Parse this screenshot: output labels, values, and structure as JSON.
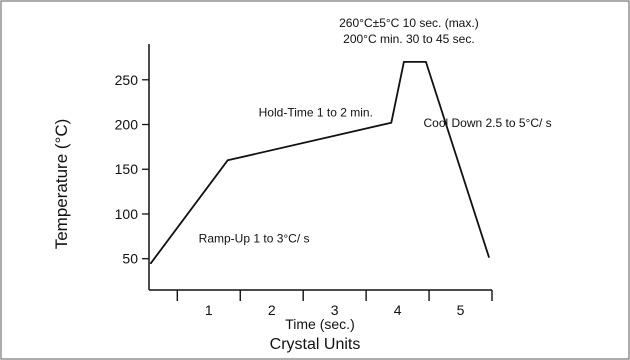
{
  "chart_data": {
    "type": "line",
    "title": "",
    "subtitle": "",
    "xlabel": "Time (sec.)",
    "footer_label": "Crystal Units",
    "ylabel": "Temperature (°C)",
    "xlim": [
      0.05,
      5.5
    ],
    "ylim": [
      15,
      290
    ],
    "x_ticks": [
      {
        "value": 1,
        "label": "1"
      },
      {
        "value": 2,
        "label": "2"
      },
      {
        "value": 3,
        "label": "3"
      },
      {
        "value": 4,
        "label": "4"
      },
      {
        "value": 5,
        "label": "5"
      }
    ],
    "x_minor_ticks": [
      0.5,
      1.5,
      2.5,
      3.5,
      4.5,
      5.5
    ],
    "y_ticks": [
      {
        "value": 50,
        "label": "50"
      },
      {
        "value": 100,
        "label": "100"
      },
      {
        "value": 150,
        "label": "150"
      },
      {
        "value": 200,
        "label": "200"
      },
      {
        "value": 250,
        "label": "250"
      }
    ],
    "series": [
      {
        "x": [
          0.08,
          1.3,
          3.9,
          4.1,
          4.45,
          5.45
        ],
        "y": [
          45,
          160,
          202,
          270,
          270,
          52
        ]
      }
    ],
    "annotations": [
      {
        "text": "260°C±5°C 10 sec. (max.)",
        "x": 4.18,
        "y": 309,
        "anchor": "middle"
      },
      {
        "text": "200°C min. 30 to 45 sec.",
        "x": 4.18,
        "y": 291,
        "anchor": "middle"
      },
      {
        "text": "Hold-Time 1 to 2 min.",
        "x": 2.7,
        "y": 209,
        "anchor": "middle"
      },
      {
        "text": "Cool Down 2.5 to 5°C/ s",
        "x": 5.43,
        "y": 197,
        "anchor": "middle"
      },
      {
        "text": "Ramp-Up 1 to 3°C/ s",
        "x": 1.72,
        "y": 68,
        "anchor": "middle"
      }
    ],
    "grid": false,
    "legend": "none"
  }
}
